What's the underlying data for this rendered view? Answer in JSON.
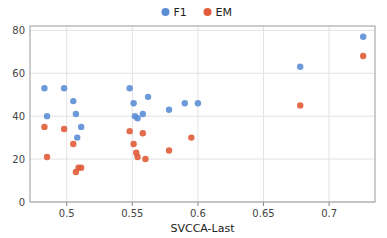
{
  "chart_data": {
    "type": "scatter",
    "xlabel": "SVCCA-Last",
    "series": [
      {
        "name": "F1",
        "color": "#5B8ED6",
        "x": [
          0.483,
          0.485,
          0.498,
          0.505,
          0.507,
          0.508,
          0.511,
          0.548,
          0.551,
          0.552,
          0.554,
          0.558,
          0.562,
          0.578,
          0.59,
          0.6,
          0.678,
          0.726
        ],
        "values": [
          53,
          40,
          53,
          47,
          41,
          30,
          35,
          53,
          46,
          40,
          39,
          41,
          49,
          43,
          46,
          46,
          63,
          77
        ]
      },
      {
        "name": "EM",
        "color": "#E05C3A",
        "x": [
          0.483,
          0.485,
          0.498,
          0.505,
          0.507,
          0.509,
          0.511,
          0.548,
          0.551,
          0.553,
          0.554,
          0.558,
          0.56,
          0.578,
          0.595,
          0.678,
          0.726
        ],
        "values": [
          35,
          21,
          34,
          27,
          14,
          16,
          16,
          33,
          27,
          23,
          21,
          32,
          20,
          24,
          30,
          45,
          68
        ]
      }
    ],
    "xlim": [
      0.472,
      0.735
    ],
    "ylim": [
      0,
      82
    ],
    "xticks": [
      0.5,
      0.55,
      0.6,
      0.65,
      0.7
    ],
    "yticks": [
      0,
      20,
      40,
      60,
      80
    ],
    "grid": true,
    "legend": "top"
  }
}
